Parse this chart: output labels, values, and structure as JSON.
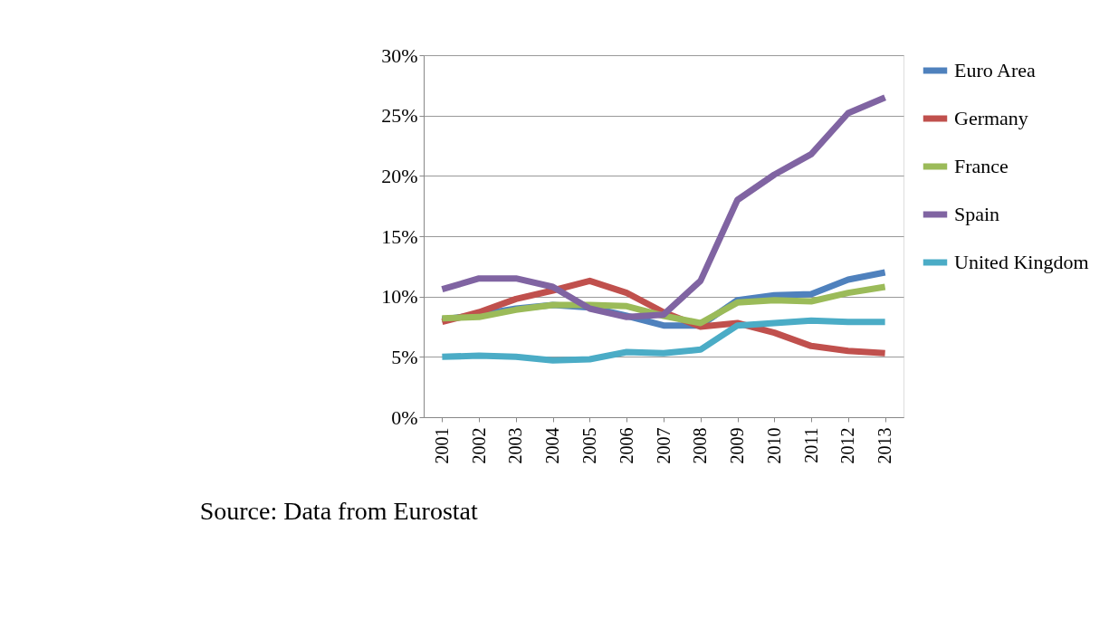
{
  "chart_data": {
    "type": "line",
    "categories": [
      "2001",
      "2002",
      "2003",
      "2004",
      "2005",
      "2006",
      "2007",
      "2008",
      "2009",
      "2010",
      "2011",
      "2012",
      "2013"
    ],
    "series": [
      {
        "name": "Euro Area",
        "color": "#4f81bd",
        "values": [
          8.1,
          8.5,
          9.0,
          9.3,
          9.1,
          8.4,
          7.6,
          7.6,
          9.7,
          10.1,
          10.2,
          11.4,
          12.0
        ]
      },
      {
        "name": "Germany",
        "color": "#c0504d",
        "values": [
          7.9,
          8.7,
          9.8,
          10.5,
          11.3,
          10.3,
          8.7,
          7.5,
          7.8,
          7.0,
          5.9,
          5.5,
          5.3
        ]
      },
      {
        "name": "France",
        "color": "#9bbb59",
        "values": [
          8.2,
          8.3,
          8.9,
          9.3,
          9.3,
          9.2,
          8.4,
          7.8,
          9.5,
          9.7,
          9.6,
          10.3,
          10.8
        ]
      },
      {
        "name": "Spain",
        "color": "#8064a2",
        "values": [
          10.6,
          11.5,
          11.5,
          10.8,
          9.0,
          8.3,
          8.5,
          11.3,
          18.0,
          20.1,
          21.8,
          25.2,
          26.5
        ]
      },
      {
        "name": "United Kingdom",
        "color": "#4bacc6",
        "values": [
          5.0,
          5.1,
          5.0,
          4.7,
          4.8,
          5.4,
          5.3,
          5.6,
          7.6,
          7.8,
          8.0,
          7.9,
          7.9
        ]
      }
    ],
    "ylim": [
      0,
      30
    ],
    "yticks": [
      {
        "value": 0,
        "label": "0%"
      },
      {
        "value": 5,
        "label": "5%"
      },
      {
        "value": 10,
        "label": "10%"
      },
      {
        "value": 15,
        "label": "15%"
      },
      {
        "value": 20,
        "label": "20%"
      },
      {
        "value": 25,
        "label": "25%"
      },
      {
        "value": 30,
        "label": "30%"
      }
    ],
    "grid": "y",
    "legend": "right",
    "marker": "none",
    "line_style": "solid",
    "annotations": [
      "Source: Data from Eurostat"
    ]
  }
}
